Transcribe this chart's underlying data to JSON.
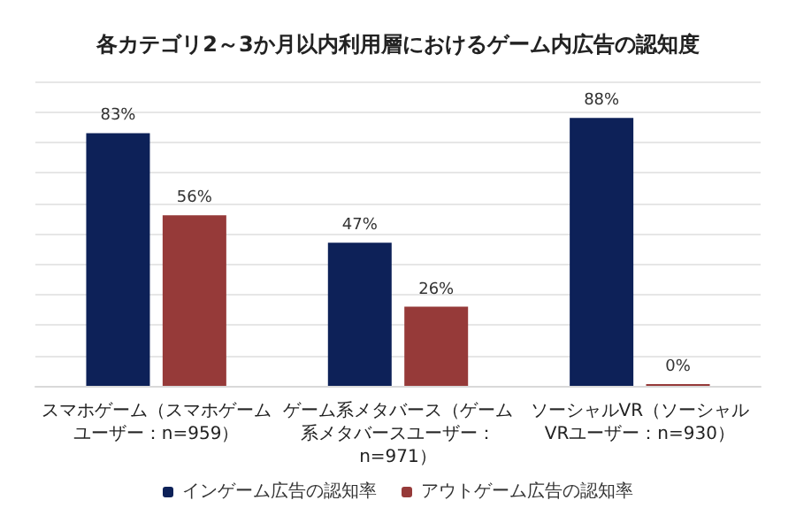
{
  "chart_data": {
    "type": "bar",
    "title": "各カテゴリ2～3か月以内利用層におけるゲーム内広告の認知度",
    "categories": [
      "スマホゲーム（スマホゲームユーザー：n=959）",
      "ゲーム系メタバース（ゲーム系メタバースユーザー：n=971）",
      "ソーシャルVR（ソーシャルVRユーザー：n=930）"
    ],
    "series": [
      {
        "name": "インゲーム広告の認知率",
        "color": "#0d2158",
        "values": [
          83,
          47,
          88
        ],
        "value_labels": [
          "83%",
          "47%",
          "88%"
        ]
      },
      {
        "name": "アウトゲーム広告の認知率",
        "color": "#963a39",
        "values": [
          56,
          26,
          0
        ],
        "value_labels": [
          "56%",
          "26%",
          "0%"
        ]
      }
    ],
    "ylim": [
      0,
      100
    ],
    "yticks": [
      {
        "value": 0,
        "label": null
      },
      {
        "value": 10,
        "label": null
      },
      {
        "value": 20,
        "label": null
      },
      {
        "value": 30,
        "label": null
      },
      {
        "value": 40,
        "label": null
      },
      {
        "value": 50,
        "label": null
      },
      {
        "value": 60,
        "label": null
      },
      {
        "value": 70,
        "label": null
      },
      {
        "value": 80,
        "label": null
      },
      {
        "value": 90,
        "label": null
      },
      {
        "value": 100,
        "label": null
      }
    ],
    "tick_labels": "x",
    "grid": "y",
    "legend": "bottom"
  }
}
